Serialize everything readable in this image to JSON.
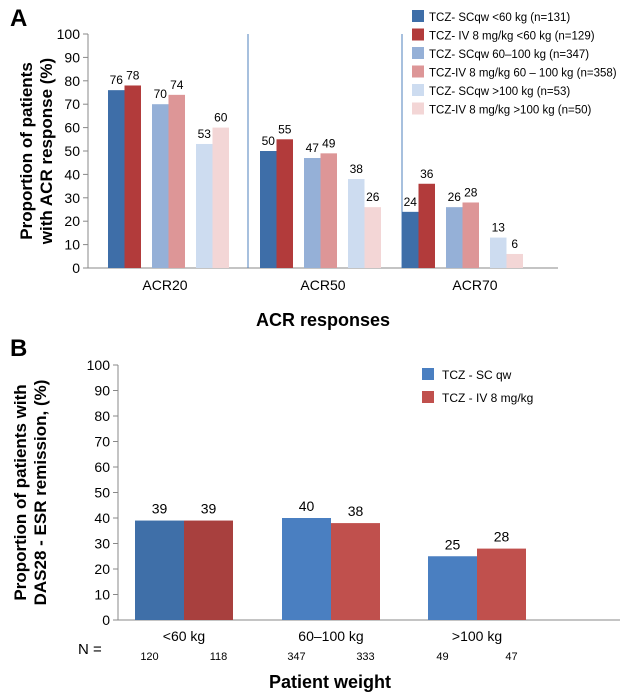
{
  "chart_data": [
    {
      "panel_label": "A",
      "type": "bar",
      "ylabel": "Proportion of patients with ACR response (%)",
      "xlabel": "ACR responses",
      "ylim": [
        0,
        100
      ],
      "yticks": [
        0,
        10,
        20,
        30,
        40,
        50,
        60,
        70,
        80,
        90,
        100
      ],
      "grid": false,
      "legend_position": "top-right",
      "categories": [
        "ACR20",
        "ACR50",
        "ACR70"
      ],
      "series": [
        {
          "name": "TCZ- SCqw <60 kg (n=131)",
          "color": "#3e6ea8",
          "values": [
            76,
            50,
            24
          ]
        },
        {
          "name": "TCZ- IV 8 mg/kg <60 kg (n=129)",
          "color": "#b23b3b",
          "values": [
            78,
            55,
            36
          ]
        },
        {
          "name": "TCZ- SCqw 60–100 kg (n=347)",
          "color": "#95b0d7",
          "values": [
            70,
            47,
            26
          ]
        },
        {
          "name": "TCZ-IV 8 mg/kg  60 – 100 kg (n=358)",
          "color": "#dd9697",
          "values": [
            74,
            49,
            28
          ]
        },
        {
          "name": "TCZ- SCqw >100 kg (n=53)",
          "color": "#cddcf0",
          "values": [
            53,
            38,
            13
          ]
        },
        {
          "name": "TCZ-IV 8 mg/kg >100 kg (n=50)",
          "color": "#f3d6d6",
          "values": [
            60,
            26,
            6
          ]
        }
      ]
    },
    {
      "panel_label": "B",
      "type": "bar",
      "ylabel": "Proportion of patients with DAS28 - ESR remission, (%)",
      "xlabel": "Patient weight",
      "ylim": [
        0,
        100
      ],
      "yticks": [
        0,
        10,
        20,
        30,
        40,
        50,
        60,
        70,
        80,
        90,
        100
      ],
      "grid": false,
      "legend_position": "top-right",
      "categories": [
        "<60 kg",
        "60–100 kg",
        ">100 kg"
      ],
      "n_label": "N =",
      "n_values": [
        [
          "120",
          "118"
        ],
        [
          "347",
          "333"
        ],
        [
          "49",
          "47"
        ]
      ],
      "series": [
        {
          "name": "TCZ - SC qw",
          "color": "#4a7fc1",
          "values": [
            39,
            40,
            25
          ]
        },
        {
          "name": "TCZ - IV 8 mg/kg",
          "color": "#c0504d",
          "values": [
            39,
            38,
            28
          ]
        }
      ],
      "first_group_colors": [
        "#3f6fa8",
        "#a8403e"
      ]
    }
  ]
}
